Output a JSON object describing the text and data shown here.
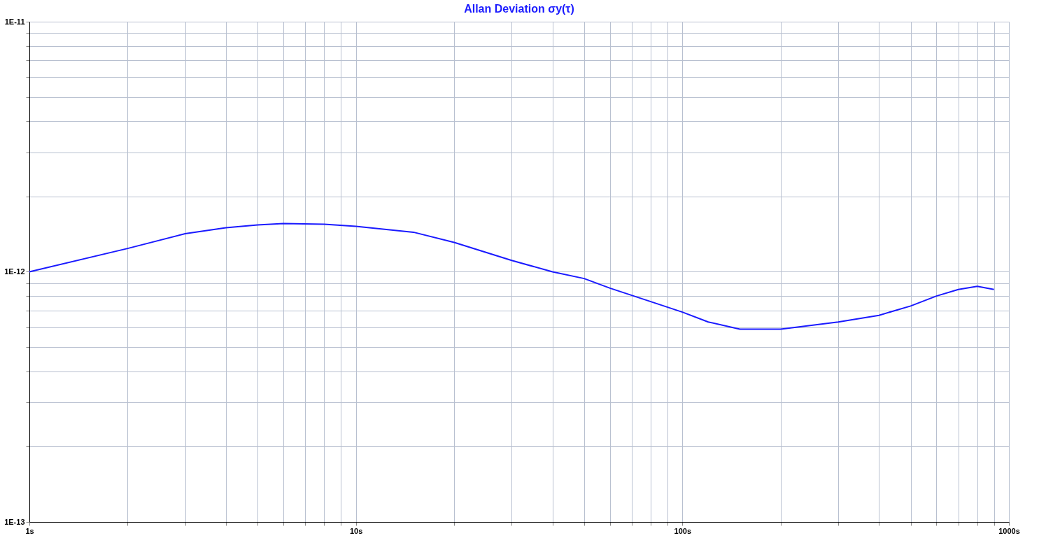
{
  "chart_data": {
    "type": "line",
    "title": "Allan Deviation σy(τ)",
    "log": "xy",
    "grid": true,
    "marker": "none",
    "line_style": "solid",
    "xlim": [
      1,
      1000
    ],
    "ylim": [
      1e-13,
      1e-11
    ],
    "xticks": [
      {
        "value": 1,
        "label": "1s"
      },
      {
        "value": 2,
        "label": null
      },
      {
        "value": 3,
        "label": null
      },
      {
        "value": 4,
        "label": null
      },
      {
        "value": 5,
        "label": null
      },
      {
        "value": 6,
        "label": null
      },
      {
        "value": 7,
        "label": null
      },
      {
        "value": 8,
        "label": null
      },
      {
        "value": 9,
        "label": null
      },
      {
        "value": 10,
        "label": "10s"
      },
      {
        "value": 20,
        "label": null
      },
      {
        "value": 30,
        "label": null
      },
      {
        "value": 40,
        "label": null
      },
      {
        "value": 50,
        "label": null
      },
      {
        "value": 60,
        "label": null
      },
      {
        "value": 70,
        "label": null
      },
      {
        "value": 80,
        "label": null
      },
      {
        "value": 90,
        "label": null
      },
      {
        "value": 100,
        "label": "100s"
      },
      {
        "value": 200,
        "label": null
      },
      {
        "value": 300,
        "label": null
      },
      {
        "value": 400,
        "label": null
      },
      {
        "value": 500,
        "label": null
      },
      {
        "value": 600,
        "label": null
      },
      {
        "value": 700,
        "label": null
      },
      {
        "value": 800,
        "label": null
      },
      {
        "value": 900,
        "label": null
      },
      {
        "value": 1000,
        "label": "1000s"
      }
    ],
    "yticks": [
      {
        "value": 1e-13,
        "label": "1E-13"
      },
      {
        "value": 2e-13,
        "label": null
      },
      {
        "value": 3e-13,
        "label": null
      },
      {
        "value": 4e-13,
        "label": null
      },
      {
        "value": 5e-13,
        "label": null
      },
      {
        "value": 6e-13,
        "label": null
      },
      {
        "value": 7e-13,
        "label": null
      },
      {
        "value": 8e-13,
        "label": null
      },
      {
        "value": 9e-13,
        "label": null
      },
      {
        "value": 1e-12,
        "label": "1E-12"
      },
      {
        "value": 2e-12,
        "label": null
      },
      {
        "value": 3e-12,
        "label": null
      },
      {
        "value": 4e-12,
        "label": null
      },
      {
        "value": 5e-12,
        "label": null
      },
      {
        "value": 6e-12,
        "label": null
      },
      {
        "value": 7e-12,
        "label": null
      },
      {
        "value": 8e-12,
        "label": null
      },
      {
        "value": 9e-12,
        "label": null
      },
      {
        "value": 1e-11,
        "label": "1E-11"
      }
    ],
    "x": [
      1,
      2,
      3,
      4,
      5,
      6,
      8,
      10,
      15,
      20,
      30,
      40,
      50,
      60,
      80,
      100,
      120,
      150,
      200,
      300,
      400,
      500,
      600,
      700,
      800,
      900
    ],
    "series": [
      {
        "color": "#1a1aff",
        "values": [
          1e-12,
          1.24e-12,
          1.42e-12,
          1.5e-12,
          1.54e-12,
          1.56e-12,
          1.55e-12,
          1.52e-12,
          1.44e-12,
          1.31e-12,
          1.11e-12,
          1e-12,
          9.4e-13,
          8.6e-13,
          7.6e-13,
          6.9e-13,
          6.3e-13,
          5.9e-13,
          5.9e-13,
          6.3e-13,
          6.7e-13,
          7.3e-13,
          8e-13,
          8.5e-13,
          8.75e-13,
          8.5e-13
        ]
      }
    ]
  }
}
